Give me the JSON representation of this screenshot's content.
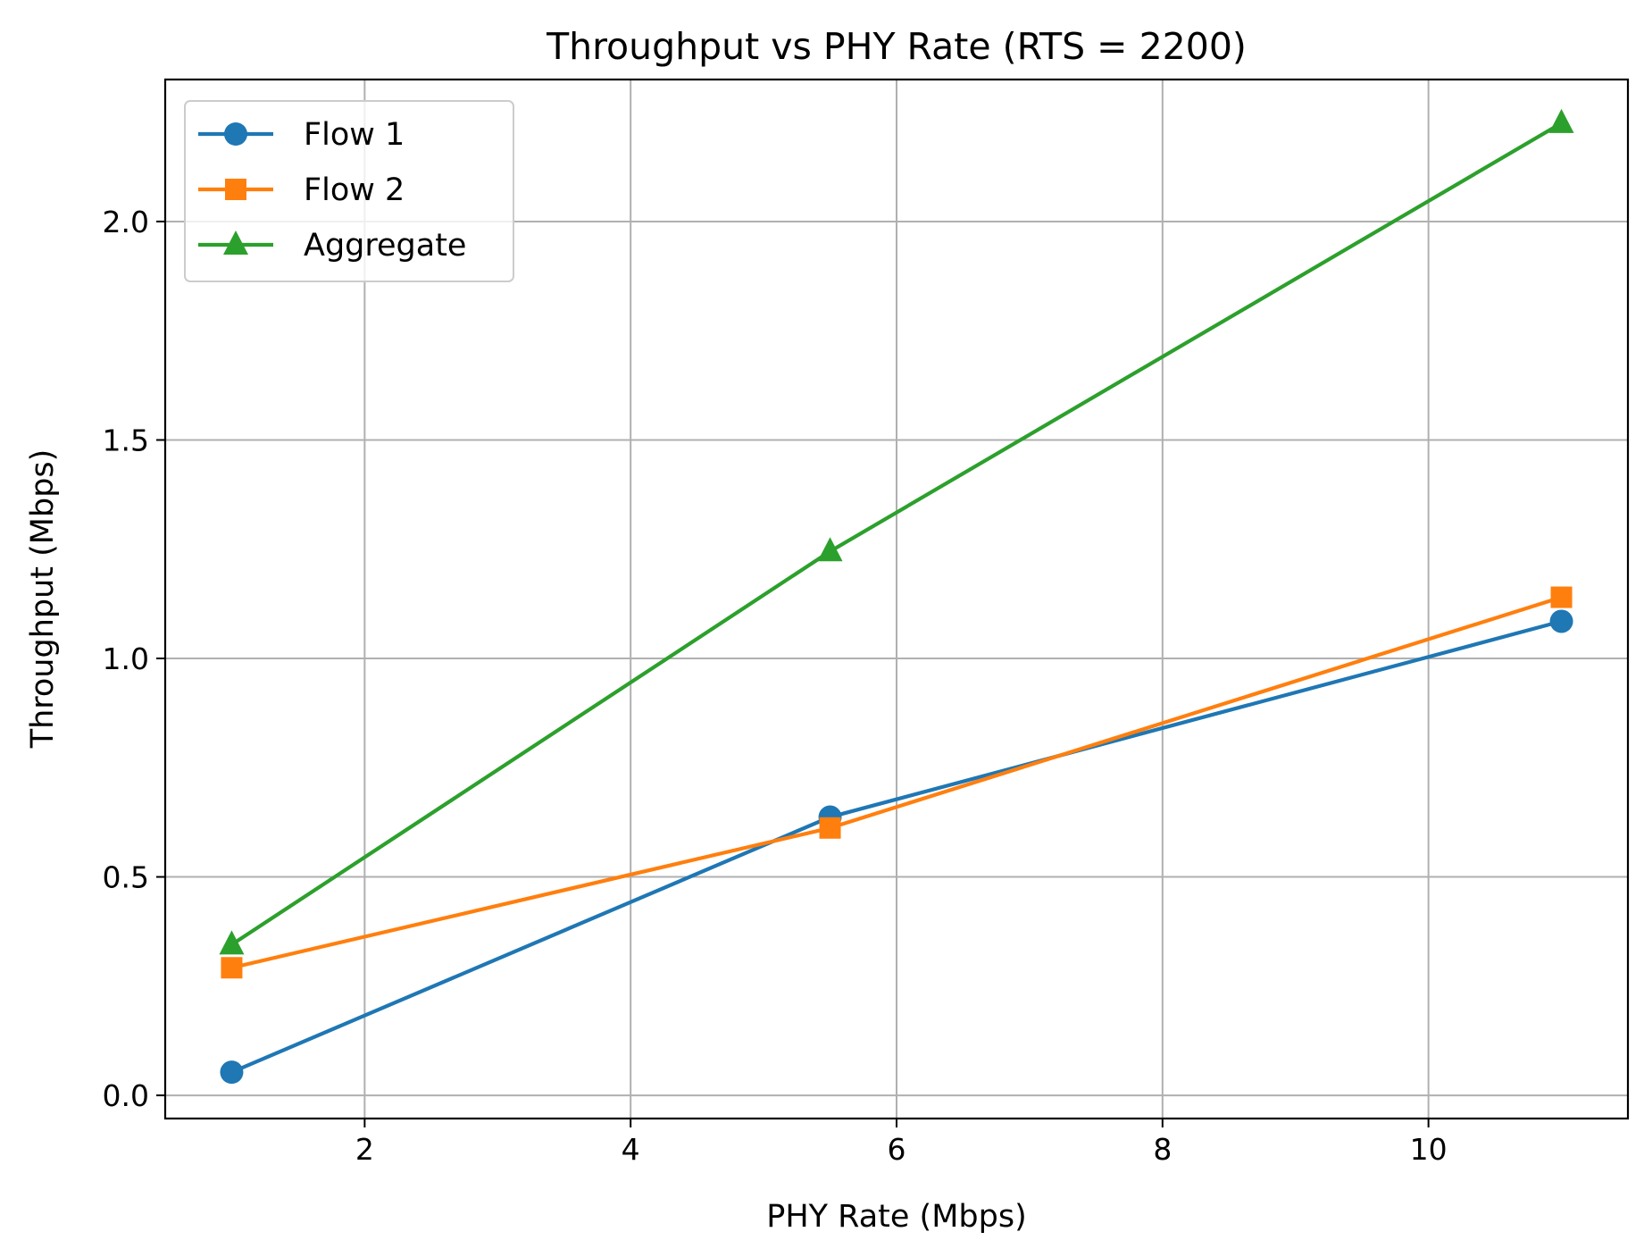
{
  "chart_data": {
    "type": "line",
    "title": "Throughput vs PHY Rate (RTS = 2200)",
    "xlabel": "PHY Rate (Mbps)",
    "ylabel": "Throughput (Mbps)",
    "xlim": [
      0.5,
      11.5
    ],
    "ylim": [
      -0.053,
      2.325
    ],
    "x_ticks": [
      2,
      4,
      6,
      8,
      10
    ],
    "x_tick_labels": [
      "2",
      "4",
      "6",
      "8",
      "10"
    ],
    "y_ticks": [
      0.0,
      0.5,
      1.0,
      1.5,
      2.0
    ],
    "y_tick_labels": [
      "0.0",
      "0.5",
      "1.0",
      "1.5",
      "2.0"
    ],
    "grid": true,
    "legend_position": "top-left",
    "x": [
      1,
      5.5,
      11
    ],
    "series": [
      {
        "name": "Flow 1",
        "values": [
          0.053,
          0.637,
          1.085
        ],
        "color": "#1f77b4",
        "marker": "circle"
      },
      {
        "name": "Flow 2",
        "values": [
          0.292,
          0.612,
          1.14
        ],
        "color": "#ff7f0e",
        "marker": "square"
      },
      {
        "name": "Aggregate",
        "values": [
          0.345,
          1.245,
          2.225
        ],
        "color": "#2ca02c",
        "marker": "triangle"
      }
    ]
  }
}
